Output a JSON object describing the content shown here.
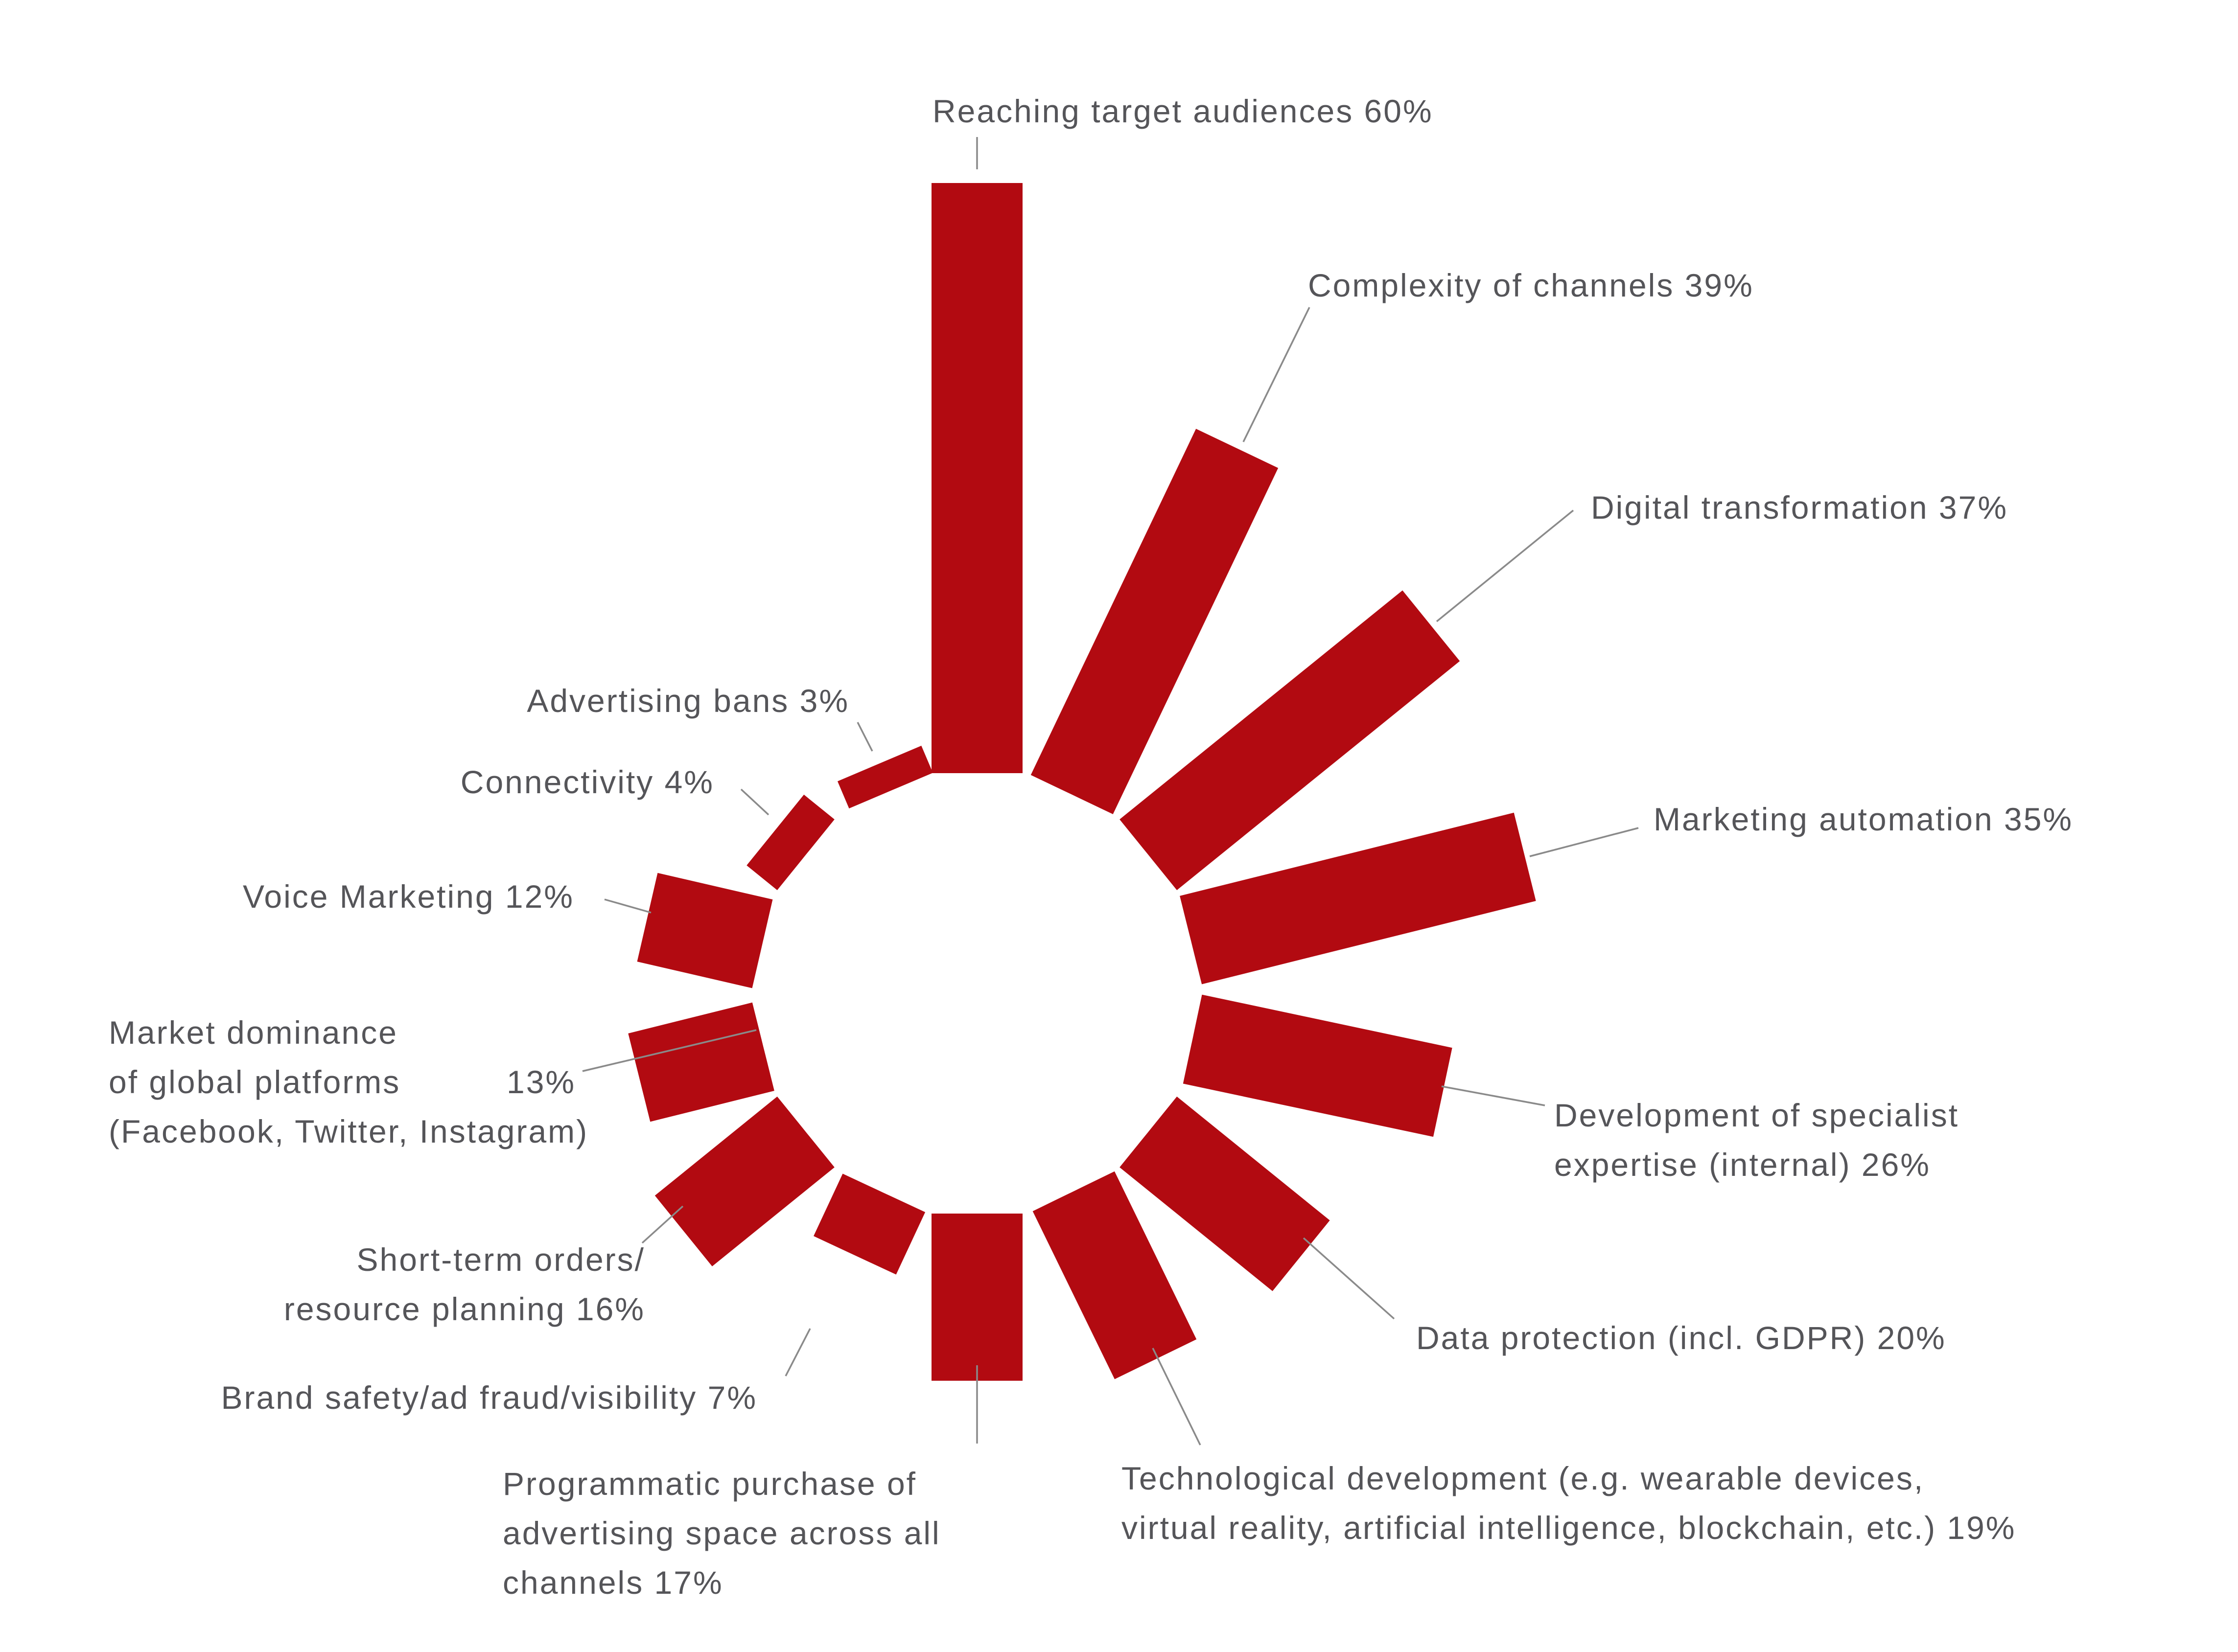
{
  "chart_data": {
    "type": "bar",
    "layout": "radial",
    "bar_color": "#b20a11",
    "label_color": "#555559",
    "leader_color": "#8a8a8a",
    "categories": [
      "Reaching target audiences",
      "Complexity of channels",
      "Digital transformation",
      "Marketing automation",
      "Development of specialist expertise (internal)",
      "Data protection (incl. GDPR)",
      "Technological development (e.g. wearable devices, virtual reality, artificial intelligence, blockchain, etc.)",
      "Programmatic purchase of advertising space across all channels",
      "Brand safety/ad fraud/visibility",
      "Short-term orders/ resource planning",
      "Market dominance of global platforms (Facebook, Twitter, Instagram)",
      "Voice Marketing",
      "Connectivity",
      "Advertising bans"
    ],
    "values": [
      60,
      39,
      37,
      35,
      26,
      20,
      19,
      17,
      7,
      16,
      13,
      12,
      4,
      3
    ],
    "labels": [
      [
        "Reaching target audiences 60%"
      ],
      [
        "Complexity of channels  39%"
      ],
      [
        "Digital transformation  37%"
      ],
      [
        "Marketing automation  35%"
      ],
      [
        "Development of specialist",
        "expertise (internal)  26%"
      ],
      [
        "Data protection (incl. GDPR)  20%"
      ],
      [
        "Technological development (e.g. wearable devices,",
        "virtual reality, artificial intelligence, blockchain, etc.)  19%"
      ],
      [
        "Programmatic purchase of",
        "advertising space across all",
        "channels  17%"
      ],
      [
        "Brand safety/ad fraud/visibility  7%"
      ],
      [
        "Short-term orders/",
        "resource planning  16%"
      ],
      [
        "Market dominance",
        "of global platforms",
        "(Facebook, Twitter, Instagram)"
      ],
      [
        "Voice Marketing  12%"
      ],
      [
        "Connectivity  4%"
      ],
      [
        "Advertising bans  3%"
      ]
    ],
    "extra_value_labels": [
      "",
      "",
      "",
      "",
      "",
      "",
      "",
      "",
      "",
      "",
      "13%",
      "",
      "",
      ""
    ]
  }
}
